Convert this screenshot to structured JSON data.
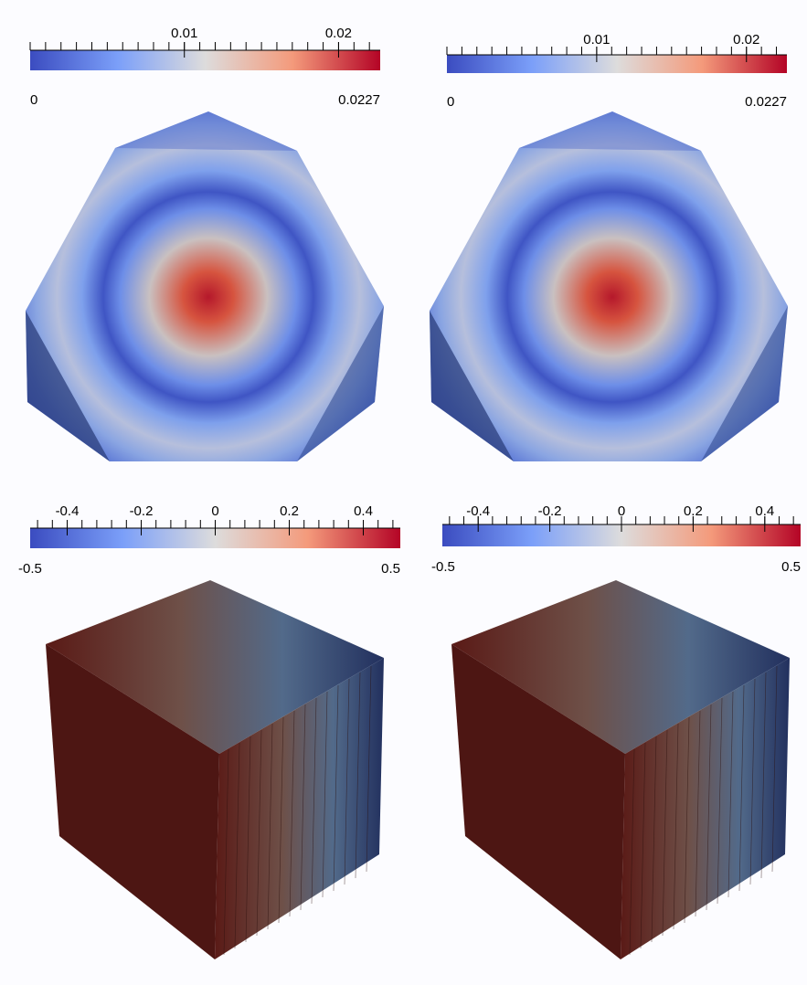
{
  "panels": [
    {
      "colorbar": {
        "range": [
          0,
          0.0227
        ],
        "ticks": [
          0.01,
          0.02
        ],
        "minor_divisions": 10
      }
    },
    {
      "colorbar": {
        "range": [
          0,
          0.0227
        ],
        "ticks": [
          0.01,
          0.02
        ],
        "minor_divisions": 10
      }
    },
    {
      "colorbar": {
        "range": [
          -0.5,
          0.5
        ],
        "ticks": [
          -0.4,
          -0.2,
          0,
          0.2,
          0.4
        ],
        "minor_divisions": 5
      }
    },
    {
      "colorbar": {
        "range": [
          -0.5,
          0.5
        ],
        "ticks": [
          -0.4,
          -0.2,
          0,
          0.2,
          0.4
        ],
        "minor_divisions": 5
      }
    }
  ]
}
